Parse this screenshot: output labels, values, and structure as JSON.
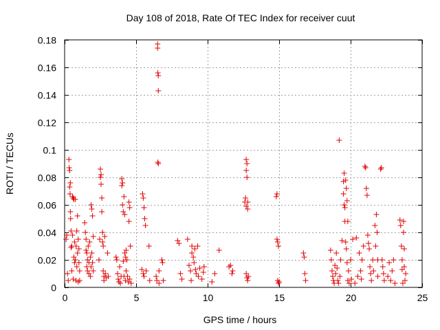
{
  "chart_data": {
    "type": "scatter",
    "title": "Day 108 of 2018, Rate Of TEC Index for receiver cuut",
    "xlabel": "GPS time / hours",
    "ylabel": "ROTI / TECUs",
    "xlim": [
      0,
      25
    ],
    "ylim": [
      0,
      0.18
    ],
    "xticks": [
      0,
      5,
      10,
      15,
      20,
      25
    ],
    "yticks": [
      0,
      0.02,
      0.04,
      0.06,
      0.08,
      0.1,
      0.12,
      0.14,
      0.16,
      0.18
    ],
    "ytick_labels": [
      "0",
      "0.02",
      "0.04",
      "0.06",
      "0.08",
      "0.1",
      "0.12",
      "0.14",
      "0.16",
      "0.18"
    ],
    "grid": true,
    "marker": "+",
    "series_color": "#e00000",
    "series": [
      {
        "name": "ROTI",
        "points": [
          [
            0.1,
            0.035
          ],
          [
            0.15,
            0.038
          ],
          [
            0.2,
            0.01
          ],
          [
            0.25,
            0.005
          ],
          [
            0.3,
            0.093
          ],
          [
            0.32,
            0.087
          ],
          [
            0.35,
            0.085
          ],
          [
            0.35,
            0.073
          ],
          [
            0.38,
            0.068
          ],
          [
            0.4,
            0.076
          ],
          [
            0.4,
            0.055
          ],
          [
            0.42,
            0.05
          ],
          [
            0.45,
            0.041
          ],
          [
            0.45,
            0.029
          ],
          [
            0.5,
            0.03
          ],
          [
            0.5,
            0.012
          ],
          [
            0.55,
            0.066
          ],
          [
            0.55,
            0.038
          ],
          [
            0.6,
            0.065
          ],
          [
            0.6,
            0.006
          ],
          [
            0.65,
            0.064
          ],
          [
            0.65,
            0.022
          ],
          [
            0.7,
            0.018
          ],
          [
            0.7,
            0.033
          ],
          [
            0.75,
            0.064
          ],
          [
            0.75,
            0.02
          ],
          [
            0.8,
            0.03
          ],
          [
            0.8,
            0.005
          ],
          [
            0.85,
            0.041
          ],
          [
            0.85,
            0.015
          ],
          [
            0.9,
            0.052
          ],
          [
            0.9,
            0.025
          ],
          [
            0.95,
            0.035
          ],
          [
            0.95,
            0.004
          ],
          [
            1.0,
            0.028
          ],
          [
            1.0,
            0.018
          ],
          [
            1.05,
            0.012
          ],
          [
            1.05,
            0.005
          ],
          [
            1.4,
            0.047
          ],
          [
            1.45,
            0.04
          ],
          [
            1.5,
            0.035
          ],
          [
            1.5,
            0.027
          ],
          [
            1.55,
            0.025
          ],
          [
            1.55,
            0.015
          ],
          [
            1.6,
            0.02
          ],
          [
            1.6,
            0.012
          ],
          [
            1.65,
            0.03
          ],
          [
            1.7,
            0.018
          ],
          [
            1.7,
            0.01
          ],
          [
            1.75,
            0.033
          ],
          [
            1.8,
            0.022
          ],
          [
            1.8,
            0.008
          ],
          [
            1.85,
            0.06
          ],
          [
            1.85,
            0.015
          ],
          [
            1.9,
            0.057
          ],
          [
            1.9,
            0.025
          ],
          [
            1.95,
            0.052
          ],
          [
            1.95,
            0.018
          ],
          [
            2.0,
            0.037
          ],
          [
            2.0,
            0.012
          ],
          [
            2.4,
            0.02
          ],
          [
            2.45,
            0.035
          ],
          [
            2.5,
            0.086
          ],
          [
            2.5,
            0.08
          ],
          [
            2.55,
            0.082
          ],
          [
            2.55,
            0.075
          ],
          [
            2.6,
            0.065
          ],
          [
            2.6,
            0.055
          ],
          [
            2.65,
            0.04
          ],
          [
            2.65,
            0.033
          ],
          [
            2.7,
            0.03
          ],
          [
            2.7,
            0.012
          ],
          [
            2.75,
            0.008
          ],
          [
            2.75,
            0.005
          ],
          [
            2.8,
            0.037
          ],
          [
            2.85,
            0.01
          ],
          [
            2.9,
            0.007
          ],
          [
            3.0,
            0.025
          ],
          [
            3.05,
            0.008
          ],
          [
            3.6,
            0.022
          ],
          [
            3.65,
            0.02
          ],
          [
            3.7,
            0.01
          ],
          [
            3.75,
            0.006
          ],
          [
            3.8,
            0.004
          ],
          [
            3.85,
            0.015
          ],
          [
            3.9,
            0.003
          ],
          [
            3.95,
            0.008
          ],
          [
            4.0,
            0.079
          ],
          [
            4.0,
            0.074
          ],
          [
            4.05,
            0.076
          ],
          [
            4.05,
            0.06
          ],
          [
            4.1,
            0.055
          ],
          [
            4.1,
            0.019
          ],
          [
            4.15,
            0.066
          ],
          [
            4.15,
            0.008
          ],
          [
            4.2,
            0.053
          ],
          [
            4.2,
            0.025
          ],
          [
            4.25,
            0.022
          ],
          [
            4.25,
            0.005
          ],
          [
            4.3,
            0.027
          ],
          [
            4.3,
            0.012
          ],
          [
            4.35,
            0.02
          ],
          [
            4.4,
            0.008
          ],
          [
            4.45,
            0.004
          ],
          [
            4.5,
            0.062
          ],
          [
            4.5,
            0.048
          ],
          [
            4.55,
            0.058
          ],
          [
            4.55,
            0.006
          ],
          [
            4.6,
            0.03
          ],
          [
            4.65,
            0.003
          ],
          [
            5.4,
            0.013
          ],
          [
            5.45,
            0.068
          ],
          [
            5.5,
            0.065
          ],
          [
            5.5,
            0.01
          ],
          [
            5.55,
            0.058
          ],
          [
            5.55,
            0.008
          ],
          [
            5.6,
            0.05
          ],
          [
            5.65,
            0.045
          ],
          [
            5.7,
            0.012
          ],
          [
            5.9,
            0.03
          ],
          [
            5.95,
            0.005
          ],
          [
            6.4,
            0.008
          ],
          [
            6.45,
            0.005
          ],
          [
            6.5,
            0.177
          ],
          [
            6.5,
            0.174
          ],
          [
            6.52,
            0.156
          ],
          [
            6.55,
            0.154
          ],
          [
            6.55,
            0.143
          ],
          [
            6.52,
            0.091
          ],
          [
            6.55,
            0.09
          ],
          [
            6.6,
            0.012
          ],
          [
            6.6,
            0.003
          ],
          [
            6.8,
            0.02
          ],
          [
            6.85,
            0.018
          ],
          [
            6.9,
            0.005
          ],
          [
            7.9,
            0.034
          ],
          [
            8.0,
            0.032
          ],
          [
            8.1,
            0.01
          ],
          [
            8.2,
            0.006
          ],
          [
            8.6,
            0.035
          ],
          [
            8.7,
            0.016
          ],
          [
            8.8,
            0.012
          ],
          [
            8.85,
            0.005
          ],
          [
            8.9,
            0.03
          ],
          [
            8.9,
            0.025
          ],
          [
            9.0,
            0.022
          ],
          [
            9.05,
            0.018
          ],
          [
            9.1,
            0.028
          ],
          [
            9.15,
            0.013
          ],
          [
            9.2,
            0.01
          ],
          [
            9.3,
            0.03
          ],
          [
            9.35,
            0.008
          ],
          [
            9.45,
            0.014
          ],
          [
            9.6,
            0.006
          ],
          [
            9.7,
            0.011
          ],
          [
            9.75,
            0.015
          ],
          [
            10.3,
            0.004
          ],
          [
            10.5,
            0.01
          ],
          [
            10.8,
            0.027
          ],
          [
            11.5,
            0.015
          ],
          [
            11.6,
            0.016
          ],
          [
            11.7,
            0.01
          ],
          [
            11.75,
            0.012
          ],
          [
            12.6,
            0.062
          ],
          [
            12.65,
            0.065
          ],
          [
            12.7,
            0.059
          ],
          [
            12.7,
            0.093
          ],
          [
            12.75,
            0.09
          ],
          [
            12.7,
            0.085
          ],
          [
            12.75,
            0.08
          ],
          [
            12.8,
            0.062
          ],
          [
            12.8,
            0.057
          ],
          [
            12.7,
            0.01
          ],
          [
            12.75,
            0.007
          ],
          [
            12.8,
            0.005
          ],
          [
            12.85,
            0.008
          ],
          [
            14.8,
            0.066
          ],
          [
            14.85,
            0.068
          ],
          [
            14.85,
            0.035
          ],
          [
            14.9,
            0.033
          ],
          [
            14.95,
            0.03
          ],
          [
            14.9,
            0.005
          ],
          [
            14.95,
            0.003
          ],
          [
            15.0,
            0.004
          ],
          [
            16.7,
            0.025
          ],
          [
            16.75,
            0.022
          ],
          [
            16.8,
            0.01
          ],
          [
            16.85,
            0.005
          ],
          [
            18.6,
            0.027
          ],
          [
            18.65,
            0.02
          ],
          [
            18.7,
            0.012
          ],
          [
            18.75,
            0.008
          ],
          [
            18.8,
            0.005
          ],
          [
            18.85,
            0.003
          ],
          [
            18.9,
            0.016
          ],
          [
            18.95,
            0.01
          ],
          [
            19.0,
            0.025
          ],
          [
            19.05,
            0.014
          ],
          [
            19.1,
            0.005
          ],
          [
            19.15,
            0.003
          ],
          [
            19.2,
            0.107
          ],
          [
            19.25,
            0.008
          ],
          [
            19.3,
            0.02
          ],
          [
            19.4,
            0.034
          ],
          [
            19.5,
            0.077
          ],
          [
            19.5,
            0.068
          ],
          [
            19.55,
            0.083
          ],
          [
            19.55,
            0.06
          ],
          [
            19.6,
            0.058
          ],
          [
            19.6,
            0.048
          ],
          [
            19.65,
            0.078
          ],
          [
            19.65,
            0.033
          ],
          [
            19.7,
            0.072
          ],
          [
            19.7,
            0.028
          ],
          [
            19.75,
            0.063
          ],
          [
            19.75,
            0.018
          ],
          [
            19.8,
            0.048
          ],
          [
            19.8,
            0.005
          ],
          [
            19.85,
            0.012
          ],
          [
            19.9,
            0.003
          ],
          [
            20.0,
            0.02
          ],
          [
            20.05,
            0.006
          ],
          [
            20.15,
            0.035
          ],
          [
            20.3,
            0.003
          ],
          [
            20.4,
            0.036
          ],
          [
            20.5,
            0.008
          ],
          [
            20.6,
            0.025
          ],
          [
            20.7,
            0.012
          ],
          [
            20.75,
            0.006
          ],
          [
            20.8,
            0.02
          ],
          [
            20.9,
            0.03
          ],
          [
            21.0,
            0.088
          ],
          [
            21.05,
            0.087
          ],
          [
            21.1,
            0.072
          ],
          [
            21.15,
            0.067
          ],
          [
            21.2,
            0.038
          ],
          [
            21.25,
            0.032
          ],
          [
            21.3,
            0.028
          ],
          [
            21.35,
            0.015
          ],
          [
            21.4,
            0.01
          ],
          [
            21.45,
            0.005
          ],
          [
            21.55,
            0.02
          ],
          [
            21.6,
            0.012
          ],
          [
            21.7,
            0.045
          ],
          [
            21.75,
            0.03
          ],
          [
            21.8,
            0.053
          ],
          [
            21.85,
            0.04
          ],
          [
            21.9,
            0.02
          ],
          [
            21.9,
            0.008
          ],
          [
            22.1,
            0.086
          ],
          [
            22.15,
            0.087
          ],
          [
            22.2,
            0.02
          ],
          [
            22.25,
            0.015
          ],
          [
            22.3,
            0.01
          ],
          [
            22.35,
            0.005
          ],
          [
            22.6,
            0.008
          ],
          [
            22.7,
            0.018
          ],
          [
            22.8,
            0.005
          ],
          [
            22.9,
            0.012
          ],
          [
            23.0,
            0.02
          ],
          [
            23.1,
            0.003
          ],
          [
            23.45,
            0.049
          ],
          [
            23.5,
            0.045
          ],
          [
            23.55,
            0.03
          ],
          [
            23.6,
            0.02
          ],
          [
            23.6,
            0.013
          ],
          [
            23.65,
            0.003
          ],
          [
            23.7,
            0.048
          ],
          [
            23.7,
            0.04
          ],
          [
            23.75,
            0.028
          ],
          [
            23.75,
            0.015
          ],
          [
            23.8,
            0.005
          ],
          [
            23.85,
            0.01
          ]
        ]
      }
    ]
  }
}
